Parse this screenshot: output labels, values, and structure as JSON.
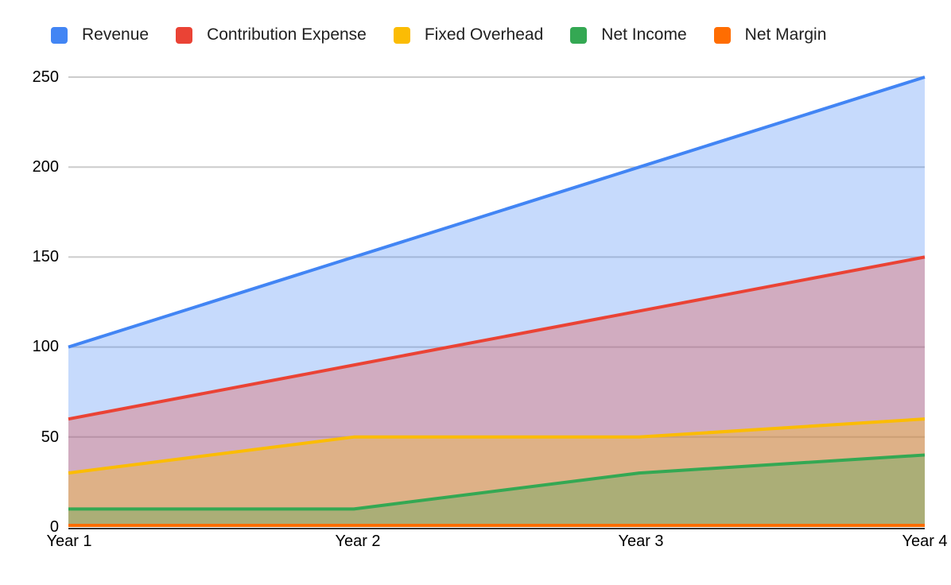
{
  "chart_data": {
    "type": "area",
    "title": "",
    "xlabel": "",
    "ylabel": "",
    "categories": [
      "Year 1",
      "Year 2",
      "Year 3",
      "Year 4"
    ],
    "series": [
      {
        "name": "Revenue",
        "color": "#4285F4",
        "values": [
          100,
          150,
          200,
          250
        ]
      },
      {
        "name": "Contribution Expense",
        "color": "#EA4335",
        "values": [
          60,
          90,
          120,
          150
        ]
      },
      {
        "name": "Fixed Overhead",
        "color": "#FBBC04",
        "values": [
          30,
          50,
          50,
          60
        ]
      },
      {
        "name": "Net Income",
        "color": "#34A853",
        "values": [
          10,
          10,
          30,
          40
        ]
      },
      {
        "name": "Net Margin",
        "color": "#FF6D01",
        "values": [
          0,
          0,
          0,
          0
        ]
      }
    ],
    "yticks": [
      0,
      50,
      100,
      150,
      200,
      250
    ],
    "ylim": [
      0,
      250
    ],
    "grid": true,
    "gridline_color": "#cccccc",
    "axis_color": "#333333",
    "fill_opacity": 0.3,
    "legend_position": "top"
  }
}
